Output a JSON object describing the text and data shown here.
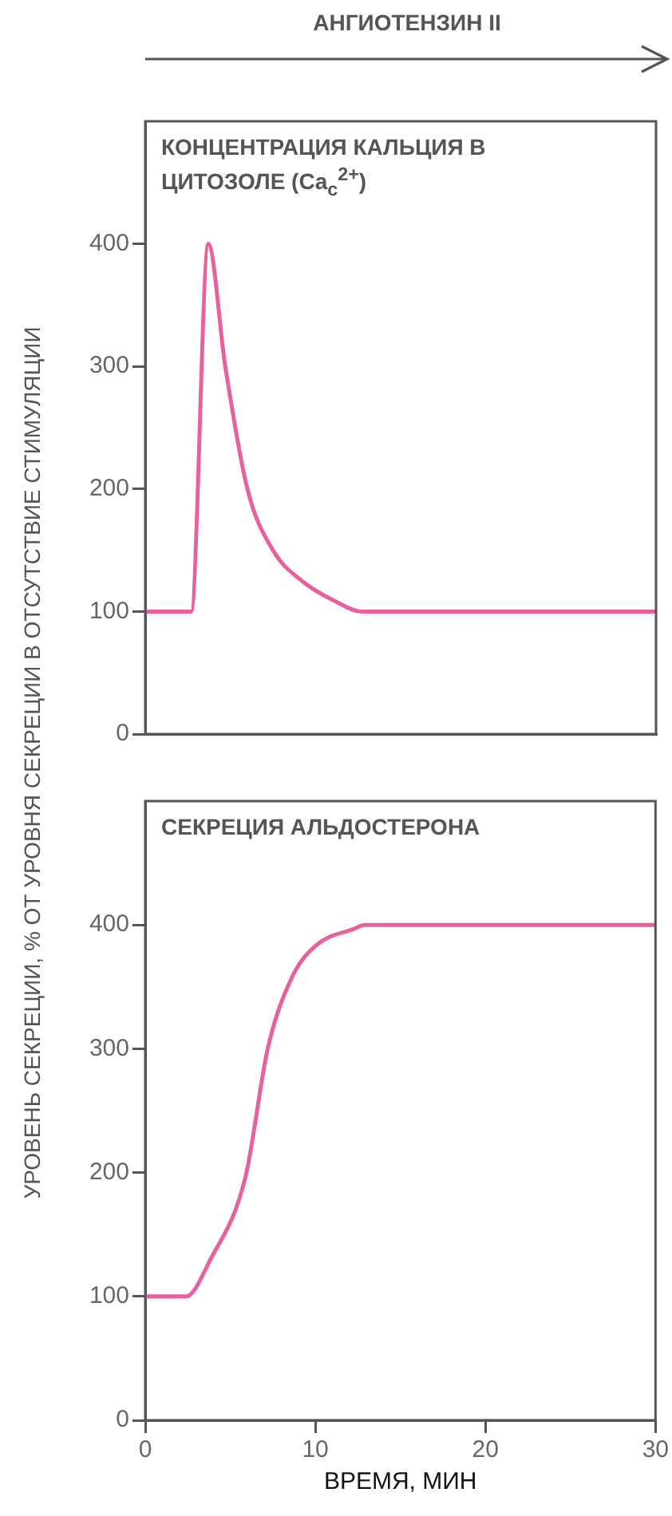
{
  "chart_data": [
    {
      "type": "line",
      "title": "КОНЦЕНТРАЦИЯ КАЛЬЦИЯ В ЦИТОЗОЛЕ (Ca$_{c}$$^{2+}$)",
      "ylabel": "УРОВЕНЬ СЕКРЕЦИИ, % ОТ УРОВНЯ СЕКРЕЦИИ В ОТСУТСТВИЕ СТИМУЛЯЦИИ",
      "annotations": [
        "АНГИОТЕНЗИН II"
      ],
      "x": [
        0,
        2.7,
        3.7,
        4.7,
        6.0,
        7.5,
        9.2,
        11.2,
        12.7,
        20,
        30
      ],
      "values": [
        100,
        100,
        400,
        300,
        200,
        150,
        125,
        108,
        100,
        100,
        100
      ],
      "color": "#e8619e",
      "xlim": [
        0,
        30
      ],
      "ylim": [
        0,
        500
      ],
      "yticks": [
        0,
        100,
        200,
        300,
        400
      ],
      "tick_labels": "y",
      "marker": "none",
      "grid": false
    },
    {
      "type": "line",
      "title": "СЕКРЕЦИЯ АЛЬДОСТЕРОНА",
      "xlabel": "ВРЕМЯ, МИН",
      "x": [
        0,
        2.4,
        3.8,
        5.9,
        7.2,
        8.6,
        10,
        12.3,
        12.9,
        30
      ],
      "values": [
        100,
        100,
        129,
        197,
        300,
        357,
        383,
        397,
        400,
        400
      ],
      "color": "#e8619e",
      "xlim": [
        0,
        30
      ],
      "xticks": [
        0,
        10,
        20,
        30
      ],
      "ylim": [
        0,
        500
      ],
      "yticks": [
        0,
        100,
        200,
        300,
        400
      ],
      "marker": "none",
      "grid": false
    }
  ]
}
